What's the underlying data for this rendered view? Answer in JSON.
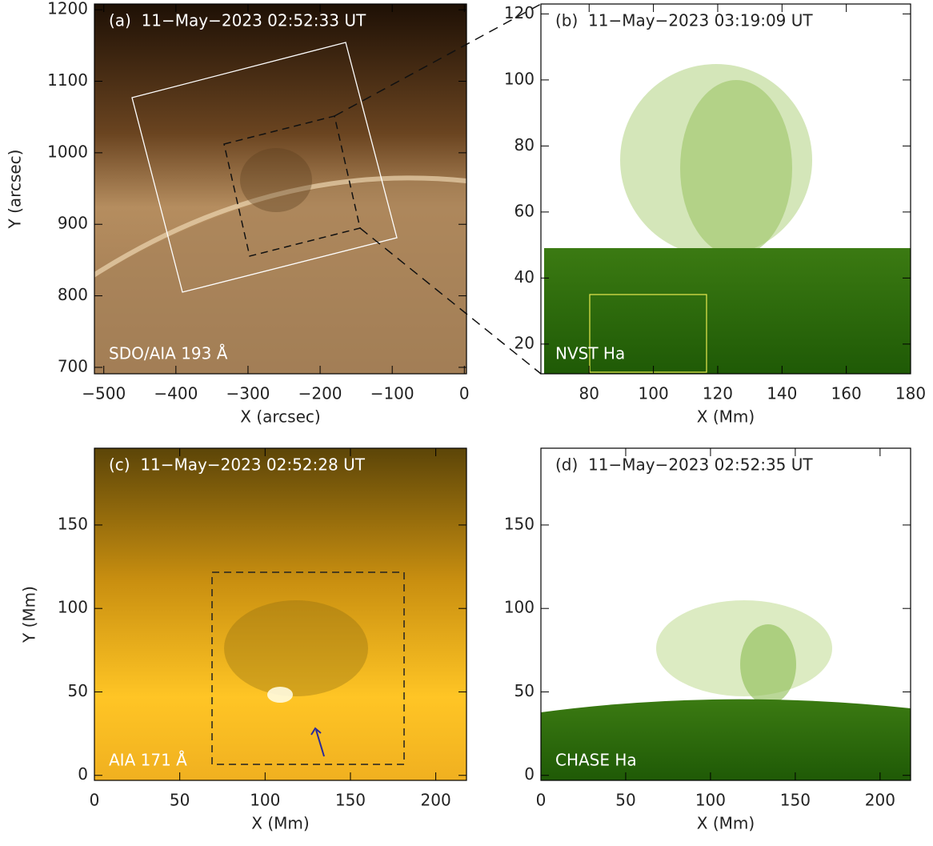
{
  "chart_data": [
    {
      "type": "image",
      "title": "(a)  11−May−2023 02:52:33 UT",
      "annotation": "SDO/AIA 193 Å",
      "xlabel": "X (arcsec)",
      "ylabel": "Y (arcsec)",
      "xlim": [
        -513,
        3
      ],
      "ylim": [
        691,
        1208
      ],
      "xticks": [
        {
          "value": -500,
          "label": "−500"
        },
        {
          "value": -400,
          "label": "−400"
        },
        {
          "value": -300,
          "label": "−300"
        },
        {
          "value": -200,
          "label": "−200"
        },
        {
          "value": -100,
          "label": "−100"
        },
        0
      ],
      "yticks": [
        700,
        800,
        900,
        1000,
        1100,
        1200
      ]
    },
    {
      "type": "image",
      "title": "(b)  11−May−2023 03:19:09 UT",
      "annotation": "NVST Ha",
      "xlabel": "X (Mm)",
      "xlim": [
        65,
        180
      ],
      "ylim": [
        11,
        123
      ],
      "xticks": [
        80,
        100,
        120,
        140,
        160,
        180
      ],
      "yticks": [
        20,
        40,
        60,
        80,
        100,
        120
      ]
    },
    {
      "type": "image",
      "title": "(c)  11−May−2023 02:52:28 UT",
      "annotation": "AIA 171 Å",
      "xlabel": "X (Mm)",
      "ylabel": "Y (Mm)",
      "xlim": [
        0,
        218
      ],
      "ylim": [
        -3,
        196
      ],
      "xticks": [
        0,
        50,
        100,
        150,
        200
      ],
      "yticks": [
        0,
        50,
        100,
        150
      ]
    },
    {
      "type": "image",
      "title": "(d)  11−May−2023 02:52:35 UT",
      "annotation": "CHASE Ha",
      "xlabel": "X (Mm)",
      "xlim": [
        0,
        218
      ],
      "ylim": [
        -3,
        196
      ],
      "xticks": [
        0,
        50,
        100,
        150,
        200
      ],
      "yticks": [
        0,
        50,
        100,
        150
      ]
    }
  ]
}
